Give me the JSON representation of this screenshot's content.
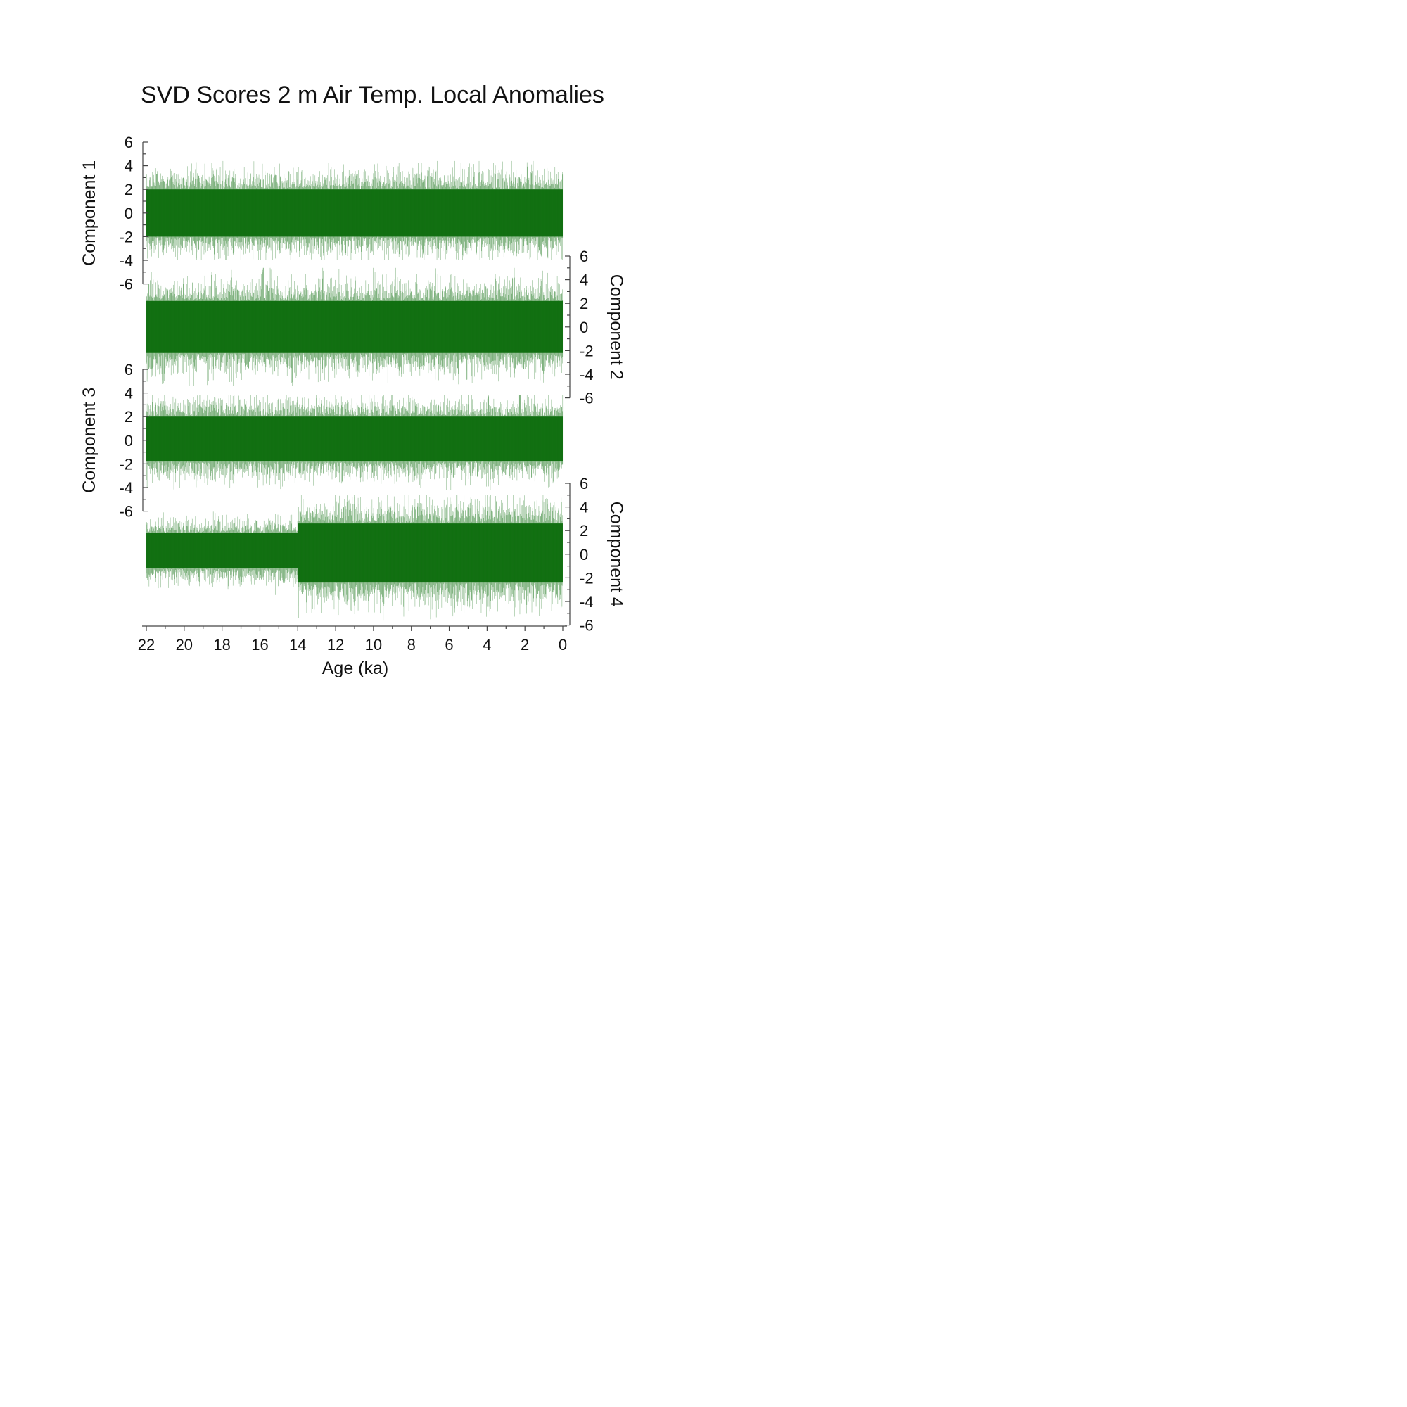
{
  "chart_data": {
    "type": "line",
    "title": "SVD Scores 2 m Air Temp. Local Anomalies",
    "xlabel": "Age (ka)",
    "x_axis": {
      "range": [
        22,
        0
      ],
      "reversed": true,
      "ticks": [
        "22",
        "20",
        "18",
        "16",
        "14",
        "12",
        "10",
        "8",
        "6",
        "4",
        "2",
        "0"
      ]
    },
    "y_ticks": [
      "6",
      "4",
      "2",
      "0",
      "-2",
      "-4",
      "-6"
    ],
    "ylim": [
      -6,
      6
    ],
    "grid": false,
    "line_color": "#0a6b0a",
    "panels": [
      {
        "ylabel": "Component 1",
        "axis_side": "left",
        "segments": [
          {
            "from_ka": 22,
            "to_ka": 0,
            "mean": 0,
            "band": [
              -2.0,
              2.0
            ],
            "extremes": [
              -4.0,
              4.4
            ]
          }
        ]
      },
      {
        "ylabel": "Component 2",
        "axis_side": "right",
        "segments": [
          {
            "from_ka": 22,
            "to_ka": 0,
            "mean": 0,
            "band": [
              -2.2,
              2.2
            ],
            "extremes": [
              -5.0,
              5.0
            ]
          }
        ]
      },
      {
        "ylabel": "Component 3",
        "axis_side": "left",
        "segments": [
          {
            "from_ka": 22,
            "to_ka": 0,
            "mean": 0,
            "band": [
              -1.8,
              2.0
            ],
            "extremes": [
              -4.2,
              3.8
            ]
          }
        ]
      },
      {
        "ylabel": "Component 4",
        "axis_side": "right",
        "segments": [
          {
            "from_ka": 22,
            "to_ka": 14,
            "mean": 0.1,
            "band": [
              -1.2,
              1.8
            ],
            "extremes": [
              -4.0,
              3.6
            ]
          },
          {
            "from_ka": 14,
            "to_ka": 0,
            "mean": 0,
            "band": [
              -2.4,
              2.6
            ],
            "extremes": [
              -6.0,
              5.0
            ]
          }
        ]
      }
    ]
  }
}
